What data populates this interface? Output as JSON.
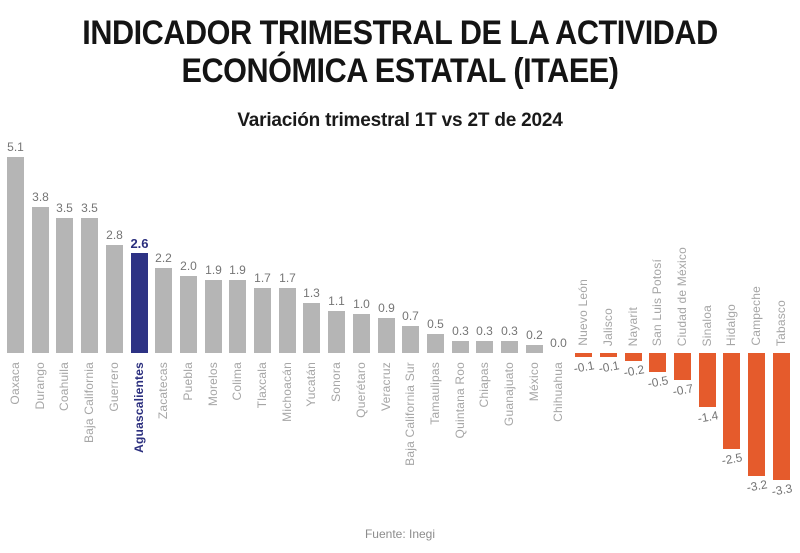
{
  "header": {
    "title_line1": "INDICADOR TRIMESTRAL DE LA ACTIVIDAD",
    "title_line2": "ECONÓMICA ESTATAL (ITAEE)",
    "subtitle": "Variación trimestral 1T vs 2T de 2024"
  },
  "footer": {
    "source": "Fuente: Inegi"
  },
  "chart_data": {
    "type": "bar",
    "title": "INDICADOR TRIMESTRAL DE LA ACTIVIDAD ECONÓMICA ESTATAL (ITAEE)",
    "subtitle": "Variación trimestral 1T vs 2T de 2024",
    "source": "Fuente: Inegi",
    "unit": "percent_quarterly_variation",
    "categories": [
      "Oaxaca",
      "Durango",
      "Coahuila",
      "Baja California",
      "Guerrero",
      "Aguascalientes",
      "Zacatecas",
      "Puebla",
      "Morelos",
      "Colima",
      "Tlaxcala",
      "Michoacán",
      "Yucatán",
      "Sonora",
      "Querétaro",
      "Veracruz",
      "Baja California Sur",
      "Tamaulipas",
      "Quintana Roo",
      "Chiapas",
      "Guanajuato",
      "México",
      "Chihuahua",
      "Nuevo León",
      "Jalisco",
      "Nayarit",
      "San Luis Potosí",
      "Ciudad de México",
      "Sinaloa",
      "Hidalgo",
      "Campeche",
      "Tabasco"
    ],
    "values": [
      5.1,
      3.8,
      3.5,
      3.5,
      2.8,
      2.6,
      2.2,
      2.0,
      1.9,
      1.9,
      1.7,
      1.7,
      1.3,
      1.1,
      1.0,
      0.9,
      0.7,
      0.5,
      0.3,
      0.3,
      0.3,
      0.2,
      0.0,
      -0.1,
      -0.1,
      -0.2,
      -0.5,
      -0.7,
      -1.4,
      -2.5,
      -3.2,
      -3.3
    ],
    "highlight_category": "Aguascalientes",
    "ylim": [
      -3.3,
      5.1
    ],
    "grid": false,
    "legend": "none",
    "colors": {
      "positive_bar": "#B5B5B5",
      "highlight_bar": "#2D3284",
      "negative_bar": "#E55B2C",
      "value_label": "#757575",
      "category_label": "#A6A6A6",
      "highlight_label": "#2B2F7E"
    }
  }
}
